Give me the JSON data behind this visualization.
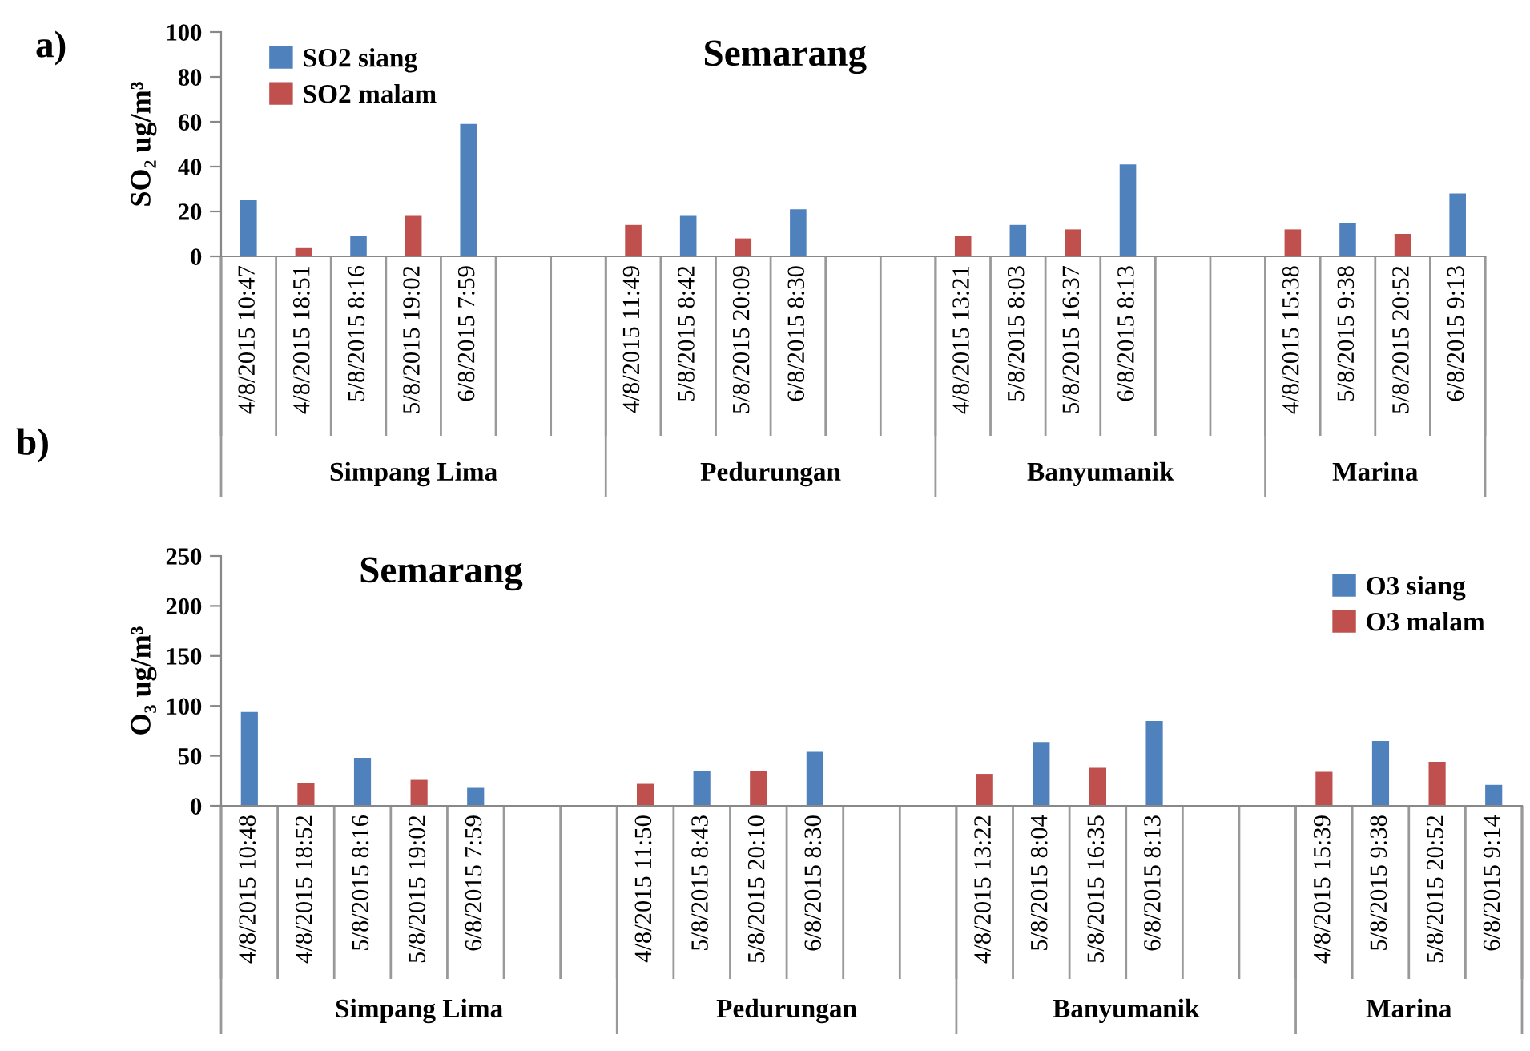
{
  "chart_data": [
    {
      "type": "bar",
      "title": "Semarang",
      "ylabel": "SO₂ ug/m³",
      "annotations": [
        "a)",
        "Simpang Lima",
        "Pedurungan",
        "Banyumanik",
        "Marina"
      ],
      "categories": [
        "4/8/2015 10:47",
        "4/8/2015 18:51",
        "5/8/2015 8:16",
        "5/8/2015 19:02",
        "6/8/2015 7:59",
        null,
        null,
        "4/8/2015 11:49",
        "5/8/2015 8:42",
        "5/8/2015 20:09",
        "6/8/2015 8:30",
        null,
        null,
        "4/8/2015 13:21",
        "5/8/2015 8:03",
        "5/8/2015 16:37",
        "6/8/2015 8:13",
        null,
        null,
        "4/8/2015 15:38",
        "5/8/2015 9:38",
        "5/8/2015 20:52",
        "6/8/2015 9:13"
      ],
      "series": [
        {
          "name": "SO2 siang",
          "color": "#4f81bd",
          "values": [
            25,
            null,
            9,
            null,
            59,
            null,
            null,
            null,
            18,
            null,
            21,
            null,
            null,
            null,
            14,
            null,
            41,
            null,
            null,
            null,
            15,
            null,
            28
          ]
        },
        {
          "name": "SO2 malam",
          "color": "#c0504d",
          "values": [
            null,
            4,
            null,
            18,
            null,
            null,
            null,
            14,
            null,
            8,
            null,
            null,
            null,
            9,
            null,
            12,
            null,
            null,
            null,
            12,
            null,
            10,
            null
          ]
        }
      ],
      "ylim": [
        0,
        100
      ],
      "yticks": [
        0,
        20,
        40,
        60,
        80,
        100
      ],
      "legend": "top left"
    },
    {
      "type": "bar",
      "title": "Semarang",
      "ylabel": "O₃ ug/m³",
      "annotations": [
        "b)",
        "Simpang Lima",
        "Pedurungan",
        "Banyumanik",
        "Marina"
      ],
      "categories": [
        "4/8/2015 10:48",
        "4/8/2015 18:52",
        "5/8/2015 8:16",
        "5/8/2015 19:02",
        "6/8/2015 7:59",
        null,
        null,
        "4/8/2015 11:50",
        "5/8/2015 8:43",
        "5/8/2015 20:10",
        "6/8/2015 8:30",
        null,
        null,
        "4/8/2015 13:22",
        "5/8/2015 8:04",
        "5/8/2015 16:35",
        "6/8/2015 8:13",
        null,
        null,
        "4/8/2015 15:39",
        "5/8/2015 9:38",
        "5/8/2015 20:52",
        "6/8/2015 9:14"
      ],
      "series": [
        {
          "name": "O3 siang",
          "color": "#4f81bd",
          "values": [
            94,
            null,
            48,
            null,
            18,
            null,
            null,
            null,
            35,
            null,
            54,
            null,
            null,
            null,
            64,
            null,
            85,
            null,
            null,
            null,
            65,
            null,
            21
          ]
        },
        {
          "name": "O3 malam",
          "color": "#c0504d",
          "values": [
            null,
            23,
            null,
            26,
            null,
            null,
            null,
            22,
            null,
            35,
            null,
            null,
            null,
            32,
            null,
            38,
            null,
            null,
            null,
            34,
            null,
            44,
            null
          ]
        }
      ],
      "ylim": [
        0,
        250
      ],
      "yticks": [
        0,
        50,
        100,
        150,
        200,
        250
      ],
      "legend": "top right"
    }
  ]
}
